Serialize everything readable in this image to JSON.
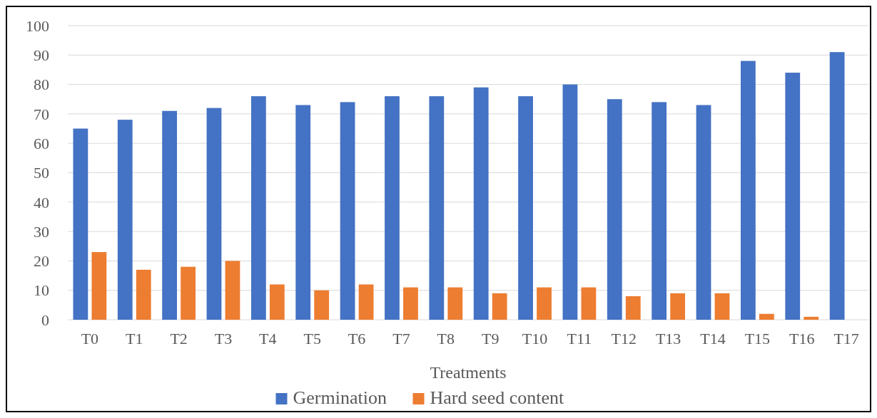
{
  "chart_data": {
    "type": "bar",
    "xlabel": "Treatments",
    "categories": [
      "T0",
      "T1",
      "T2",
      "T3",
      "T4",
      "T5",
      "T6",
      "T7",
      "T8",
      "T9",
      "T10",
      "T11",
      "T12",
      "T13",
      "T14",
      "T15",
      "T16",
      "T17"
    ],
    "series": [
      {
        "name": "Germination",
        "color": "#4472c4",
        "values": [
          65,
          68,
          71,
          72,
          76,
          73,
          74,
          76,
          76,
          79,
          76,
          80,
          75,
          74,
          73,
          88,
          84,
          91
        ]
      },
      {
        "name": "Hard seed content",
        "color": "#ed7d31",
        "values": [
          23,
          17,
          18,
          20,
          12,
          10,
          12,
          11,
          11,
          9,
          11,
          11,
          8,
          9,
          9,
          2,
          1,
          0
        ]
      }
    ],
    "ylim": [
      0,
      100
    ],
    "yticks": [
      0,
      10,
      20,
      30,
      40,
      50,
      60,
      70,
      80,
      90,
      100
    ],
    "grid": "y",
    "legend": "bottom"
  }
}
